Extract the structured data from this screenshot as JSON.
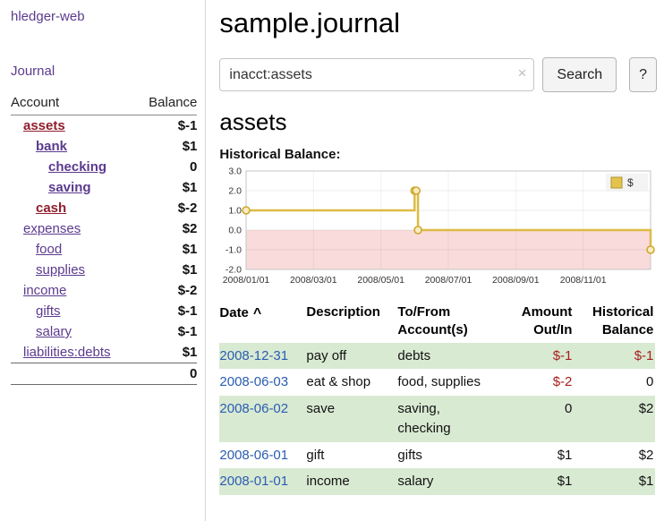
{
  "app": {
    "title": "hledger-web"
  },
  "sidebar": {
    "journal_label": "Journal",
    "columns": [
      "Account",
      "Balance"
    ],
    "accounts": [
      {
        "name": "assets",
        "balance": "$-1",
        "depth": 0,
        "bold": true,
        "name_color": "red",
        "balance_color": "red-strong"
      },
      {
        "name": "bank",
        "balance": "$1",
        "depth": 1,
        "bold": true,
        "name_color": "purple",
        "balance_color": "default"
      },
      {
        "name": "checking",
        "balance": "0",
        "depth": 2,
        "bold": true,
        "name_color": "purple",
        "balance_color": "default"
      },
      {
        "name": "saving",
        "balance": "$1",
        "depth": 2,
        "bold": true,
        "name_color": "purple",
        "balance_color": "default"
      },
      {
        "name": "cash",
        "balance": "$-2",
        "depth": 1,
        "bold": true,
        "name_color": "red",
        "balance_color": "red-strong"
      },
      {
        "name": "expenses",
        "balance": "$2",
        "depth": 0,
        "bold": false,
        "name_color": "purple",
        "balance_color": "default"
      },
      {
        "name": "food",
        "balance": "$1",
        "depth": 1,
        "bold": false,
        "name_color": "purple",
        "balance_color": "default"
      },
      {
        "name": "supplies",
        "balance": "$1",
        "depth": 1,
        "bold": false,
        "name_color": "purple",
        "balance_color": "default"
      },
      {
        "name": "income",
        "balance": "$-2",
        "depth": 0,
        "bold": false,
        "name_color": "purple",
        "balance_color": "red-soft"
      },
      {
        "name": "gifts",
        "balance": "$-1",
        "depth": 1,
        "bold": false,
        "name_color": "purple",
        "balance_color": "red-soft"
      },
      {
        "name": "salary",
        "balance": "$-1",
        "depth": 1,
        "bold": false,
        "name_color": "purple",
        "balance_color": "red-soft"
      },
      {
        "name": "liabilities:debts",
        "balance": "$1",
        "depth": 0,
        "bold": false,
        "name_color": "purple",
        "balance_color": "default"
      }
    ],
    "total": "0"
  },
  "main": {
    "title": "sample.journal",
    "search": {
      "value": "inacct:assets",
      "clear_icon": "×",
      "button_label": "Search",
      "help_label": "?"
    },
    "account_heading": "assets",
    "chart_label": "Historical Balance:"
  },
  "chart_data": {
    "type": "line",
    "title": "Historical Balance",
    "ylabel": "",
    "xlabel": "",
    "ylim": [
      -2,
      3
    ],
    "ytick_values": [
      3,
      2,
      1,
      0,
      -1,
      -2
    ],
    "yticks": [
      "3.0",
      "2.0",
      "1.0",
      "0.0",
      "-1.0",
      "-2.0"
    ],
    "xlim_months": [
      0,
      12
    ],
    "xticks": [
      {
        "pos": 0,
        "label": "2008/01/01"
      },
      {
        "pos": 2,
        "label": "2008/03/01"
      },
      {
        "pos": 4,
        "label": "2008/05/01"
      },
      {
        "pos": 6,
        "label": "2008/07/01"
      },
      {
        "pos": 8,
        "label": "2008/09/01"
      },
      {
        "pos": 10,
        "label": "2008/11/01"
      }
    ],
    "series": [
      {
        "name": "$",
        "color": "#ddbb44",
        "step": true,
        "points": [
          {
            "date": "2008-01-01",
            "pos": 0,
            "balance": 1
          },
          {
            "date": "2008-06-01",
            "pos": 5.0,
            "balance": 2
          },
          {
            "date": "2008-06-02",
            "pos": 5.05,
            "balance": 2
          },
          {
            "date": "2008-06-03",
            "pos": 5.1,
            "balance": 0
          },
          {
            "date": "2008-12-31",
            "pos": 12,
            "balance": -1
          }
        ]
      }
    ],
    "negative_region_color": "#f9dbdb",
    "grid": true,
    "legend": {
      "label": "$",
      "position": "top-right"
    }
  },
  "register": {
    "sort_icon": "^",
    "headers": [
      {
        "line1": "Date",
        "line2": "",
        "sort": "asc",
        "align": "left"
      },
      {
        "line1": "Description",
        "line2": "",
        "align": "left"
      },
      {
        "line1": "To/From",
        "line2": "Account(s)",
        "align": "left"
      },
      {
        "line1": "Amount",
        "line2": "Out/In",
        "align": "right"
      },
      {
        "line1": "Historical",
        "line2": "Balance",
        "align": "right"
      }
    ],
    "rows": [
      {
        "date": "2008-12-31",
        "description": "pay off",
        "accounts": "debts",
        "amount": "$-1",
        "amount_negative": true,
        "balance": "$-1",
        "balance_negative": true,
        "highlighted": true
      },
      {
        "date": "2008-06-03",
        "description": "eat & shop",
        "accounts": "food, supplies",
        "amount": "$-2",
        "amount_negative": true,
        "balance": "0",
        "balance_negative": false,
        "highlighted": false
      },
      {
        "date": "2008-06-02",
        "description": "save",
        "accounts": "saving, checking",
        "amount": "0",
        "amount_negative": false,
        "balance": "$2",
        "balance_negative": false,
        "highlighted": true
      },
      {
        "date": "2008-06-01",
        "description": "gift",
        "accounts": "gifts",
        "amount": "$1",
        "amount_negative": false,
        "balance": "$2",
        "balance_negative": false,
        "highlighted": false
      },
      {
        "date": "2008-01-01",
        "description": "income",
        "accounts": "salary",
        "amount": "$1",
        "amount_negative": false,
        "balance": "$1",
        "balance_negative": false,
        "highlighted": true
      }
    ]
  },
  "colors": {
    "link_purple": "#5b3a8e",
    "date_link_blue": "#2a5db0",
    "negative_strong": "#8f1d2c",
    "negative_soft": "#c2566b",
    "table_negative": "#a81d1d",
    "row_highlight_green": "#d9ead3",
    "chart_line_gold": "#ddbb44",
    "negative_region_pink": "#f9dbdb"
  }
}
